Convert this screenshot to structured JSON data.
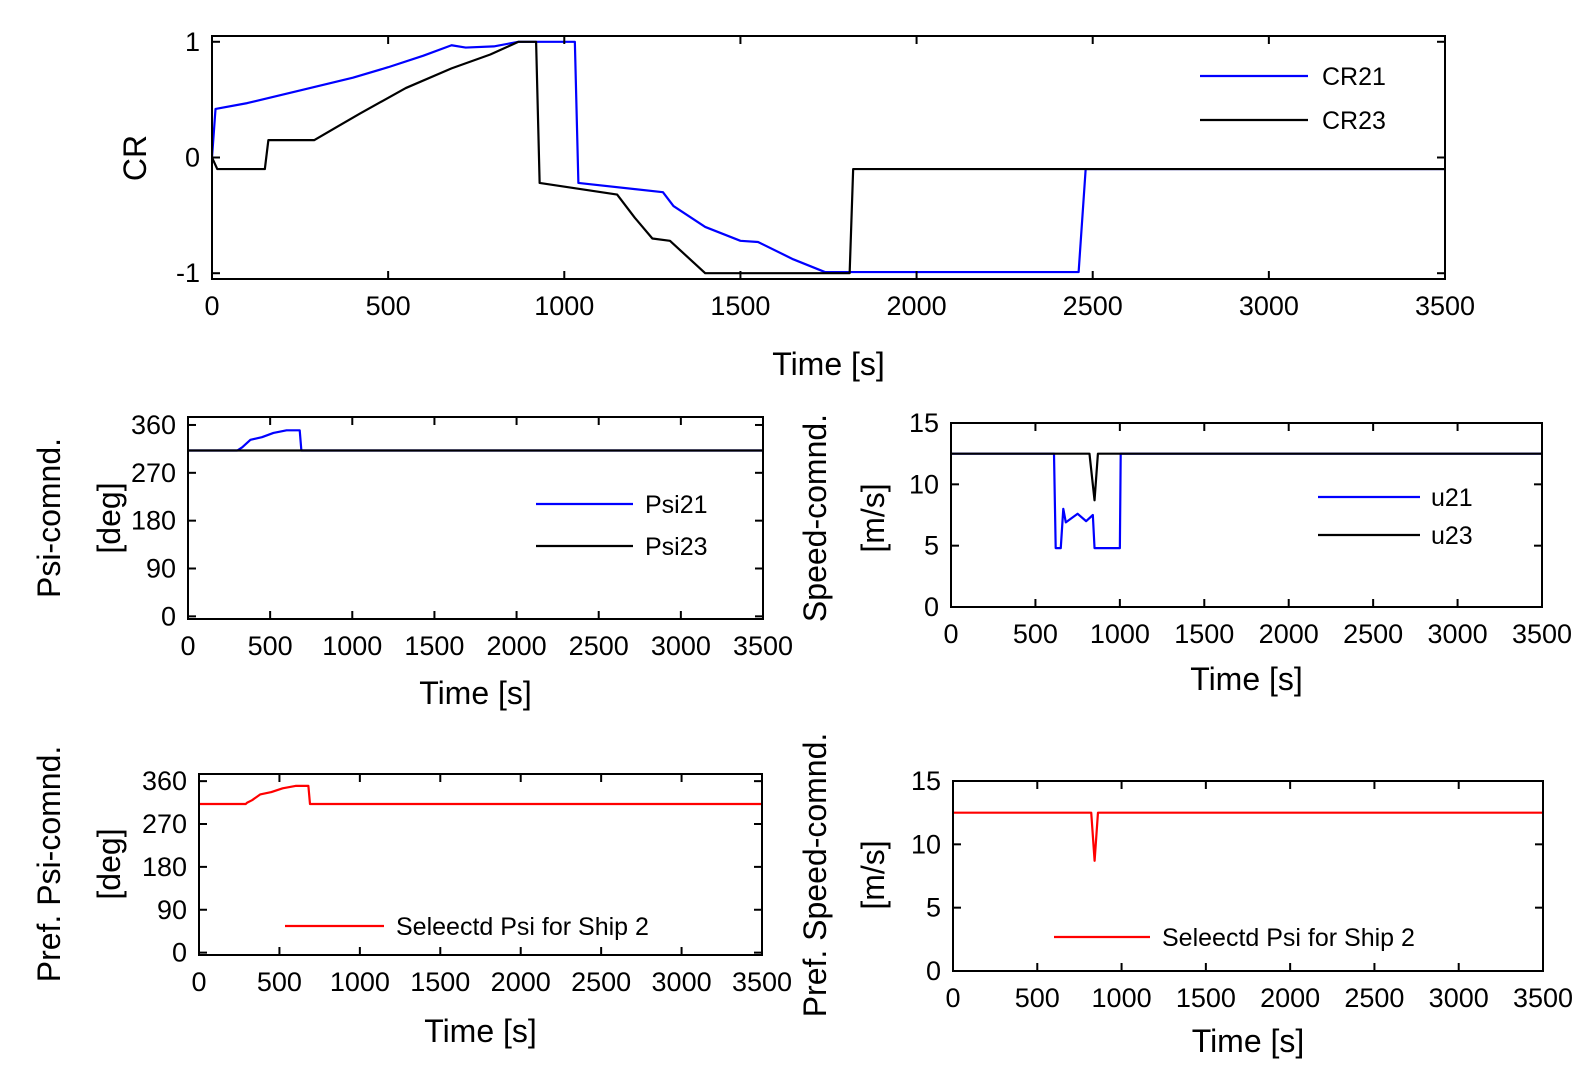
{
  "figure": {
    "type": "multi-panel line charts"
  },
  "chart_data": [
    {
      "id": "cr",
      "type": "line",
      "title": "",
      "xlabel": "Time [s]",
      "ylabel": "CR",
      "xlim": [
        0,
        3500
      ],
      "ylim": [
        -1.05,
        1.05
      ],
      "xticks": [
        0,
        500,
        1000,
        1500,
        2000,
        2500,
        3000,
        3500
      ],
      "yticks": [
        -1,
        0,
        1
      ],
      "legend_position": "top-right",
      "series": [
        {
          "name": "CR21",
          "color": "#0000ff",
          "points": [
            [
              0,
              0
            ],
            [
              10,
              0.42
            ],
            [
              100,
              0.47
            ],
            [
              250,
              0.58
            ],
            [
              400,
              0.69
            ],
            [
              500,
              0.78
            ],
            [
              600,
              0.88
            ],
            [
              680,
              0.97
            ],
            [
              720,
              0.95
            ],
            [
              800,
              0.96
            ],
            [
              870,
              1
            ],
            [
              1030,
              1
            ],
            [
              1040,
              -0.22
            ],
            [
              1280,
              -0.3
            ],
            [
              1310,
              -0.42
            ],
            [
              1400,
              -0.6
            ],
            [
              1500,
              -0.72
            ],
            [
              1550,
              -0.73
            ],
            [
              1650,
              -0.88
            ],
            [
              1740,
              -0.99
            ],
            [
              2460,
              -0.99
            ],
            [
              2480,
              -0.1
            ],
            [
              3500,
              -0.1
            ]
          ]
        },
        {
          "name": "CR23",
          "color": "#000000",
          "points": [
            [
              0,
              0
            ],
            [
              15,
              -0.1
            ],
            [
              150,
              -0.1
            ],
            [
              160,
              0.15
            ],
            [
              290,
              0.15
            ],
            [
              420,
              0.38
            ],
            [
              550,
              0.6
            ],
            [
              680,
              0.77
            ],
            [
              790,
              0.89
            ],
            [
              870,
              1
            ],
            [
              920,
              1
            ],
            [
              930,
              -0.22
            ],
            [
              1150,
              -0.32
            ],
            [
              1200,
              -0.52
            ],
            [
              1250,
              -0.7
            ],
            [
              1300,
              -0.72
            ],
            [
              1400,
              -1
            ],
            [
              1810,
              -1
            ],
            [
              1820,
              -0.1
            ],
            [
              3500,
              -0.1
            ]
          ]
        }
      ]
    },
    {
      "id": "psi",
      "type": "line",
      "title": "",
      "xlabel": "Time [s]",
      "ylabel": "Psi-comnd.",
      "ylabel2": "[deg]",
      "xlim": [
        0,
        3500
      ],
      "ylim": [
        -5,
        375
      ],
      "xticks": [
        0,
        500,
        1000,
        1500,
        2000,
        2500,
        3000,
        3500
      ],
      "yticks": [
        0,
        90,
        180,
        270,
        360
      ],
      "legend_position": "middle-right",
      "series": [
        {
          "name": "Psi21",
          "color": "#0000ff",
          "points": [
            [
              0,
              312
            ],
            [
              300,
              312
            ],
            [
              330,
              318
            ],
            [
              380,
              332
            ],
            [
              450,
              337
            ],
            [
              520,
              345
            ],
            [
              600,
              350
            ],
            [
              680,
              350
            ],
            [
              690,
              312
            ],
            [
              3500,
              312
            ]
          ]
        },
        {
          "name": "Psi23",
          "color": "#000000",
          "points": [
            [
              0,
              312
            ],
            [
              3500,
              312
            ]
          ]
        }
      ]
    },
    {
      "id": "speed",
      "type": "line",
      "title": "",
      "xlabel": "Time [s]",
      "ylabel": "Speed-comnd.",
      "ylabel2": "[m/s]",
      "xlim": [
        0,
        3500
      ],
      "ylim": [
        0,
        15
      ],
      "xticks": [
        0,
        500,
        1000,
        1500,
        2000,
        2500,
        3000,
        3500
      ],
      "yticks": [
        0,
        5,
        10,
        15
      ],
      "legend_position": "top-right",
      "series": [
        {
          "name": "u21",
          "color": "#0000ff",
          "points": [
            [
              0,
              12.5
            ],
            [
              610,
              12.5
            ],
            [
              620,
              4.8
            ],
            [
              650,
              4.8
            ],
            [
              665,
              8
            ],
            [
              680,
              6.9
            ],
            [
              700,
              7.1
            ],
            [
              750,
              7.6
            ],
            [
              800,
              7
            ],
            [
              840,
              7.5
            ],
            [
              850,
              4.8
            ],
            [
              1000,
              4.8
            ],
            [
              1005,
              12.5
            ],
            [
              3500,
              12.5
            ]
          ]
        },
        {
          "name": "u23",
          "color": "#000000",
          "points": [
            [
              0,
              12.5
            ],
            [
              820,
              12.5
            ],
            [
              850,
              8.7
            ],
            [
              870,
              12.5
            ],
            [
              3500,
              12.5
            ]
          ]
        }
      ]
    },
    {
      "id": "pref_psi",
      "type": "line",
      "title": "",
      "xlabel": "Time [s]",
      "ylabel": "Pref. Psi-comnd.",
      "ylabel2": "[deg]",
      "xlim": [
        0,
        3500
      ],
      "ylim": [
        -5,
        375
      ],
      "xticks": [
        0,
        500,
        1000,
        1500,
        2000,
        2500,
        3000,
        3500
      ],
      "yticks": [
        0,
        90,
        180,
        270,
        360
      ],
      "legend_position": "bottom-right",
      "series": [
        {
          "name": "Seleectd Psi for Ship 2",
          "color": "#ff0000",
          "points": [
            [
              0,
              312
            ],
            [
              290,
              312
            ],
            [
              300,
              315
            ],
            [
              330,
              320
            ],
            [
              380,
              332
            ],
            [
              450,
              337
            ],
            [
              520,
              345
            ],
            [
              600,
              350
            ],
            [
              680,
              350
            ],
            [
              690,
              312
            ],
            [
              3500,
              312
            ]
          ]
        }
      ]
    },
    {
      "id": "pref_speed",
      "type": "line",
      "title": "",
      "xlabel": "Time [s]",
      "ylabel": "Pref. Speed-comnd.",
      "ylabel2": "[m/s]",
      "xlim": [
        0,
        3500
      ],
      "ylim": [
        0,
        15
      ],
      "xticks": [
        0,
        500,
        1000,
        1500,
        2000,
        2500,
        3000,
        3500
      ],
      "yticks": [
        0,
        5,
        10,
        15
      ],
      "legend_position": "bottom-right",
      "series": [
        {
          "name": "Seleectd Psi for Ship 2",
          "color": "#ff0000",
          "points": [
            [
              0,
              12.5
            ],
            [
              820,
              12.5
            ],
            [
              840,
              8.7
            ],
            [
              860,
              12.5
            ],
            [
              3500,
              12.5
            ]
          ]
        }
      ]
    }
  ]
}
